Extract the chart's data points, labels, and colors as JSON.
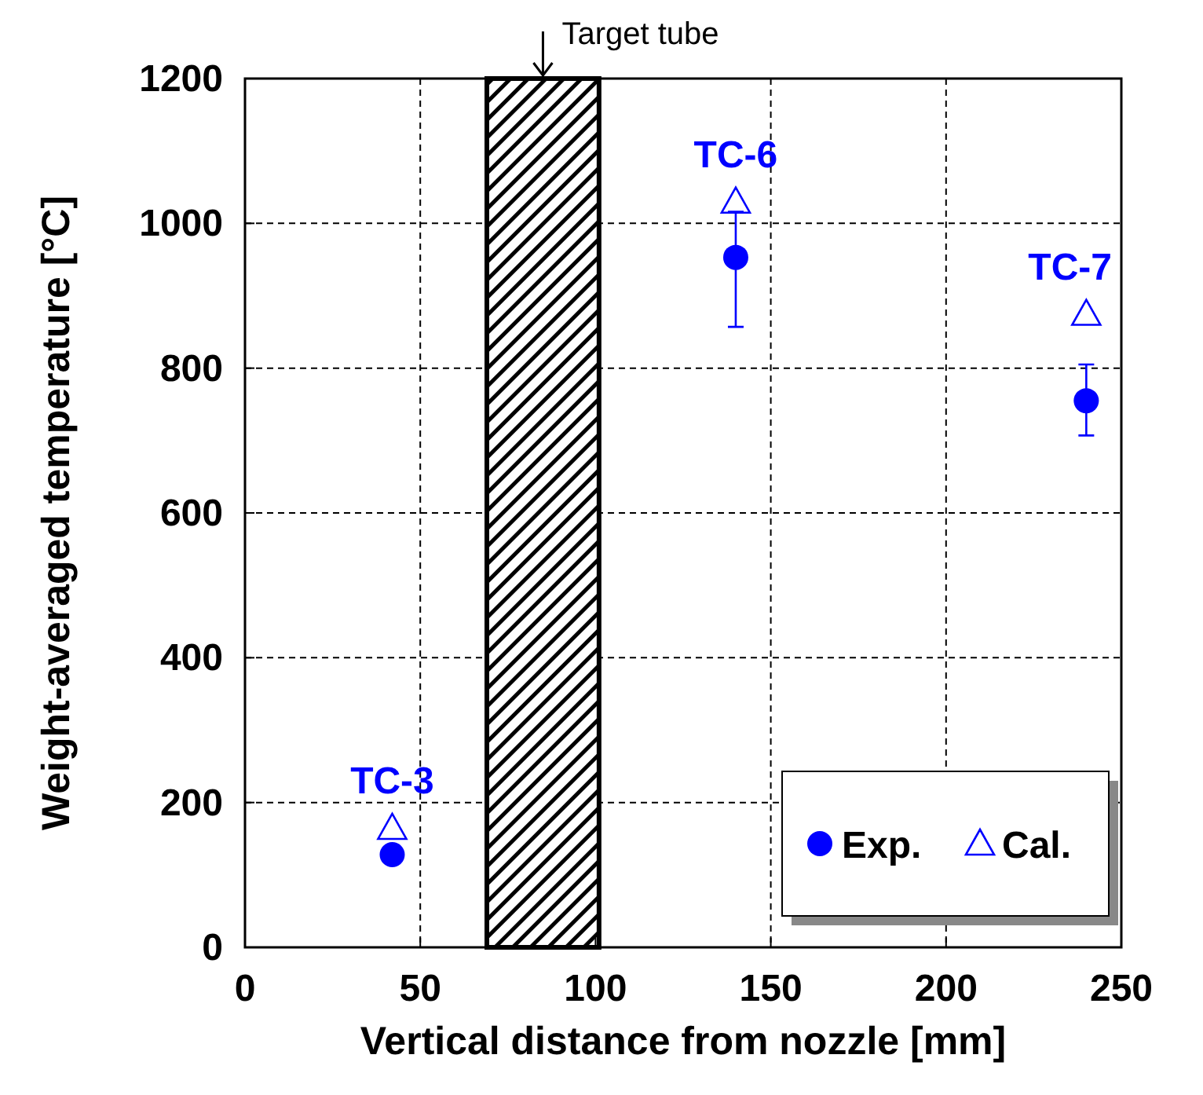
{
  "chart_data": {
    "type": "scatter",
    "xlabel": "Vertical distance from nozzle [mm]",
    "ylabel": "Weight-averaged temperature [°C]",
    "xlim": [
      0,
      250
    ],
    "xticks": [
      0,
      50,
      100,
      150,
      200,
      250
    ],
    "ylim": [
      0,
      1200
    ],
    "yticks": [
      0,
      200,
      400,
      600,
      800,
      1000,
      1200
    ],
    "grid": true,
    "legend": "bottom right",
    "series": [
      {
        "name": "Exp.",
        "color": "#0000ff",
        "marker": "circle",
        "x": [
          42,
          140,
          240
        ],
        "values": [
          128,
          953,
          755
        ],
        "errors": [
          null,
          [
            857,
            1016
          ],
          [
            707,
            805
          ]
        ]
      },
      {
        "name": "Cal.",
        "color": "#0000ff",
        "marker": "triangle",
        "x": [
          42,
          140,
          240
        ],
        "values": [
          165,
          1030,
          875
        ]
      }
    ],
    "bands": [
      {
        "axis": "x",
        "from": 69,
        "to": 101,
        "label": "Target tube",
        "color": "#000000"
      }
    ],
    "annotations": [
      {
        "text": "TC-3",
        "x": 42,
        "y": 165
      },
      {
        "text": "TC-6",
        "x": 140,
        "y": 1030
      },
      {
        "text": "TC-7",
        "x": 240,
        "y": 875
      }
    ]
  }
}
